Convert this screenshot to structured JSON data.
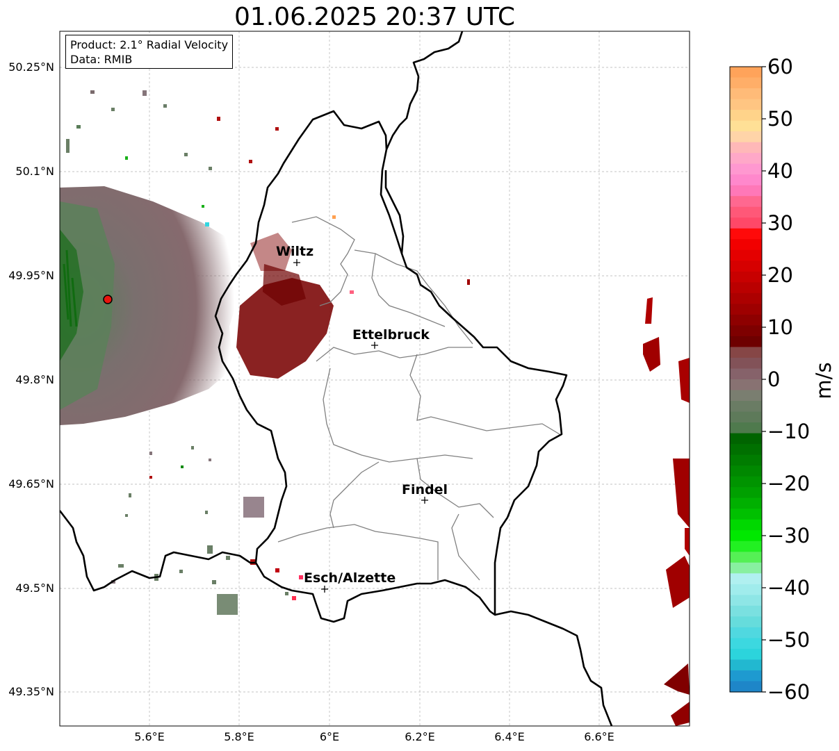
{
  "title": "01.06.2025 20:37 UTC",
  "info": {
    "product": "Product: 2.1° Radial Velocity",
    "source": "Data: RMIB"
  },
  "axes": {
    "lat_ticks": [
      "50.25°N",
      "50.1°N",
      "49.95°N",
      "49.8°N",
      "49.65°N",
      "49.5°N",
      "49.35°N"
    ],
    "lon_ticks": [
      "5.6°E",
      "5.8°E",
      "6°E",
      "6.2°E",
      "6.4°E",
      "6.6°E"
    ]
  },
  "cities": [
    {
      "name": "Wiltz"
    },
    {
      "name": "Ettelbruck"
    },
    {
      "name": "Findel"
    },
    {
      "name": "Esch/Alzette"
    }
  ],
  "colorbar": {
    "label": "m/s",
    "ticks": [
      "60",
      "50",
      "40",
      "30",
      "20",
      "10",
      "0",
      "−10",
      "−20",
      "−30",
      "−40",
      "−50",
      "−60"
    ],
    "min": -60,
    "max": 60
  },
  "colors": {
    "radar_marker": "#e8140e",
    "border": "#000000",
    "canton_lines": "#808080"
  }
}
